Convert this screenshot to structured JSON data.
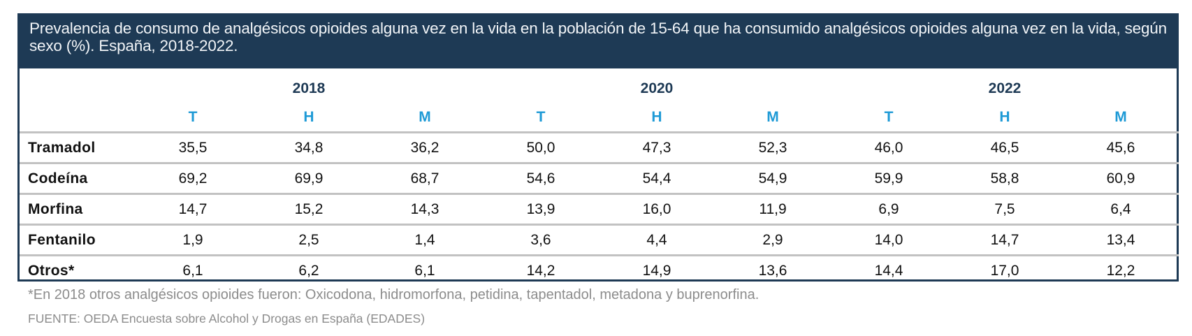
{
  "title": "Prevalencia de consumo de analgésicos opioides alguna vez en la vida en la población de 15-64 que ha consumido analgésicos opioides alguna vez en la vida, según sexo (%). España, 2018-2022.",
  "years": [
    "2018",
    "2020",
    "2022"
  ],
  "sex_labels": [
    "T",
    "H",
    "M",
    "T",
    "H",
    "M",
    "T",
    "H",
    "M"
  ],
  "rows": [
    {
      "label": "Tramadol",
      "values": [
        "35,5",
        "34,8",
        "36,2",
        "50,0",
        "47,3",
        "52,3",
        "46,0",
        "46,5",
        "45,6"
      ]
    },
    {
      "label": "Codeína",
      "values": [
        "69,2",
        "69,9",
        "68,7",
        "54,6",
        "54,4",
        "54,9",
        "59,9",
        "58,8",
        "60,9"
      ]
    },
    {
      "label": "Morfina",
      "values": [
        "14,7",
        "15,2",
        "14,3",
        "13,9",
        "16,0",
        "11,9",
        "6,9",
        "7,5",
        "6,4"
      ]
    },
    {
      "label": "Fentanilo",
      "values": [
        "1,9",
        "2,5",
        "1,4",
        "3,6",
        "4,4",
        "2,9",
        "14,0",
        "14,7",
        "13,4"
      ]
    },
    {
      "label": "Otros*",
      "values": [
        "6,1",
        "6,2",
        "6,1",
        "14,2",
        "14,9",
        "13,6",
        "14,4",
        "17,0",
        "12,2"
      ]
    }
  ],
  "footnote": "*En 2018 otros analgésicos opioides fueron: Oxicodona, hidromorfona, petidina, tapentadol, metadona y buprenorfina.",
  "source": "FUENTE: OEDA Encuesta sobre Alcohol y Drogas en España (EDADES)",
  "colors": {
    "header_bg": "#1e3a55",
    "sex_label": "#1e9ad6",
    "row_rule": "#c2c2c2",
    "note": "#8c8c8c"
  }
}
